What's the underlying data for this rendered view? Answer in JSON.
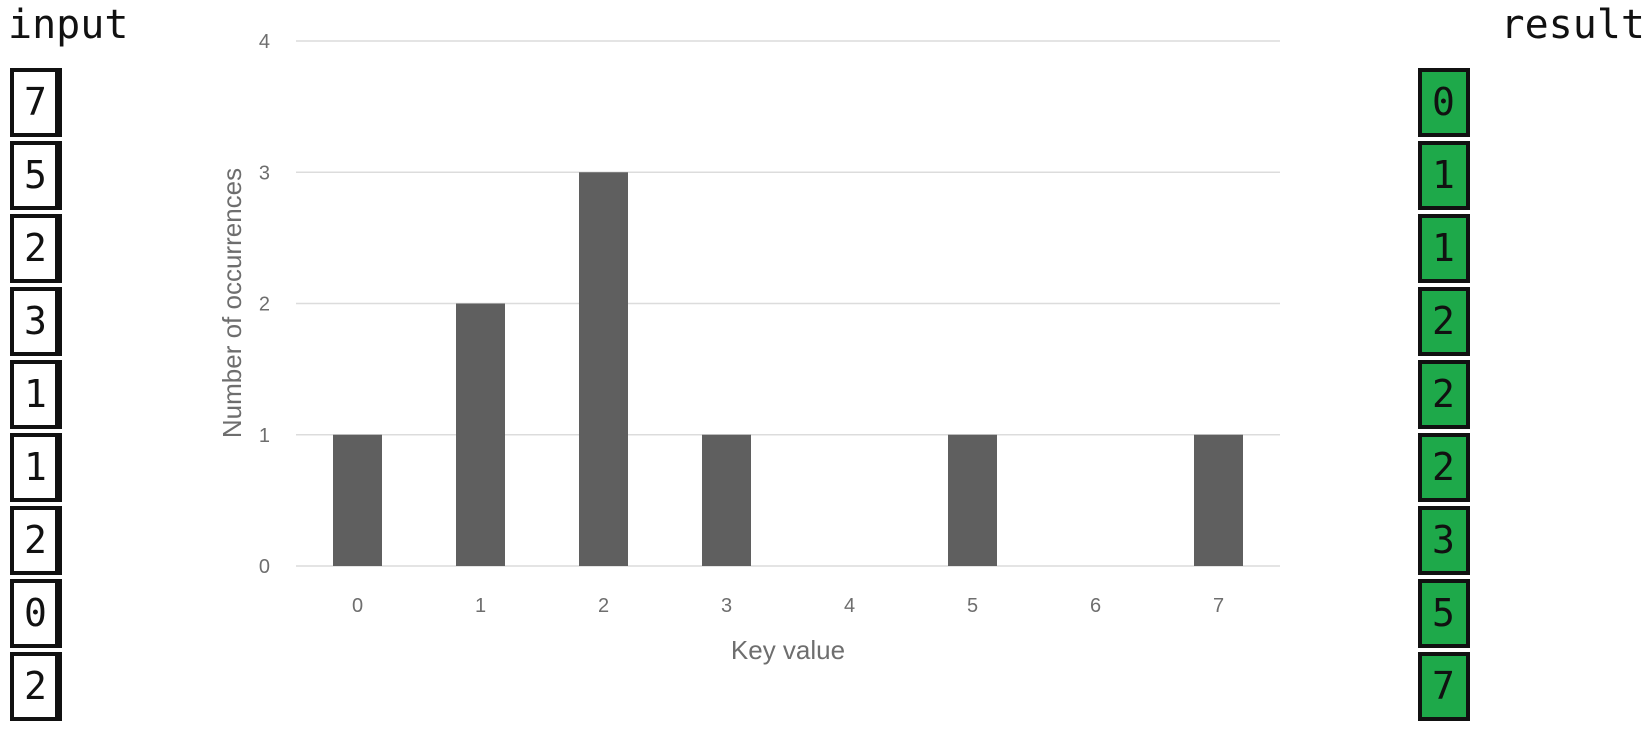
{
  "input": {
    "title": "input",
    "values": [
      "7",
      "5",
      "2",
      "3",
      "1",
      "1",
      "2",
      "0",
      "2"
    ]
  },
  "result": {
    "title": "result",
    "values": [
      "0",
      "1",
      "1",
      "2",
      "2",
      "2",
      "3",
      "5",
      "7"
    ]
  },
  "colors": {
    "bar": "#5f5f5f",
    "grid": "#dcdcdc",
    "result_cell": "#1ea94a",
    "text": "#6e6e6e"
  },
  "chart_data": {
    "type": "bar",
    "categories": [
      "0",
      "1",
      "2",
      "3",
      "4",
      "5",
      "6",
      "7"
    ],
    "values": [
      1,
      2,
      3,
      1,
      0,
      1,
      0,
      1
    ],
    "title": "",
    "xlabel": "Key value",
    "ylabel": "Number of occurrences",
    "ylim": [
      0,
      4
    ],
    "yticks": [
      "0",
      "1",
      "2",
      "3",
      "4"
    ],
    "grid": true,
    "legend": "none"
  }
}
